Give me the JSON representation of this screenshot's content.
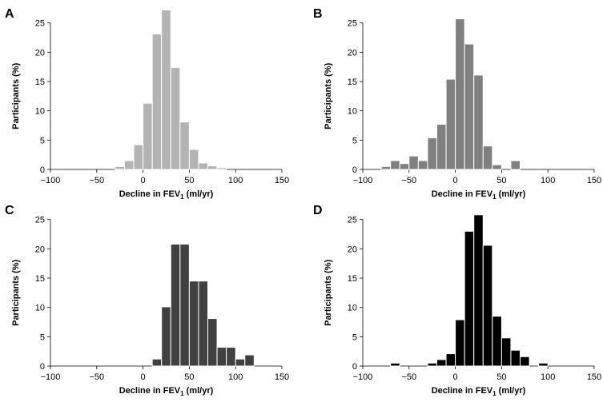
{
  "chart_data": [
    {
      "type": "bar",
      "panel_label": "A",
      "bar_color": "#b3b3b3",
      "bin_width": 10,
      "bin_starts": [
        -30,
        -20,
        -10,
        0,
        10,
        20,
        30,
        40,
        50,
        60,
        70,
        80
      ],
      "values": [
        0.5,
        1.5,
        4.2,
        11.3,
        23.1,
        27.2,
        17.4,
        8.1,
        3.4,
        1.1,
        0.6,
        0.3
      ],
      "xlim": [
        -100,
        150
      ],
      "ylim": [
        0,
        27
      ],
      "xticks": [
        -100,
        -50,
        0,
        50,
        100,
        150
      ],
      "yticks": [
        0,
        5,
        10,
        15,
        20,
        25
      ],
      "xtick_labels": [
        "−100",
        "−50",
        "0",
        "50",
        "100",
        "150"
      ],
      "ytick_labels": [
        "0",
        "5",
        "10",
        "15",
        "20",
        "25"
      ],
      "xlabel": "Decline in FEV",
      "xlabel_sub": "1",
      "xlabel_suffix": " (ml/yr)",
      "ylabel": "Participants (%)"
    },
    {
      "type": "bar",
      "panel_label": "B",
      "bar_color": "#808080",
      "bin_width": 10,
      "bin_starts": [
        -80,
        -70,
        -60,
        -50,
        -40,
        -30,
        -20,
        -10,
        0,
        10,
        20,
        30,
        40,
        50,
        60
      ],
      "values": [
        0.5,
        1.5,
        1.0,
        2.3,
        1.5,
        5.4,
        7.7,
        15.4,
        25.7,
        21.4,
        16.1,
        4.0,
        0.8,
        0,
        1.5
      ],
      "xlim": [
        -100,
        150
      ],
      "ylim": [
        0,
        27
      ],
      "xticks": [
        -100,
        -50,
        0,
        50,
        100,
        150
      ],
      "yticks": [
        0,
        5,
        10,
        15,
        20,
        25
      ],
      "xtick_labels": [
        "−100",
        "−50",
        "0",
        "50",
        "100",
        "150"
      ],
      "ytick_labels": [
        "0",
        "5",
        "10",
        "15",
        "20",
        "25"
      ],
      "xlabel": "Decline in FEV",
      "xlabel_sub": "1",
      "xlabel_suffix": " (ml/yr)",
      "ylabel": "Participants (%)"
    },
    {
      "type": "bar",
      "panel_label": "C",
      "bar_color": "#404040",
      "bin_width": 10,
      "bin_starts": [
        10,
        20,
        30,
        40,
        50,
        60,
        70,
        80,
        90,
        100,
        110
      ],
      "values": [
        1.2,
        10.1,
        20.8,
        20.8,
        14.5,
        14.5,
        8.1,
        3.2,
        3.2,
        1.2,
        1.9
      ],
      "xlim": [
        -100,
        150
      ],
      "ylim": [
        0,
        27
      ],
      "xticks": [
        -100,
        -50,
        0,
        50,
        100,
        150
      ],
      "yticks": [
        0,
        5,
        10,
        15,
        20,
        25
      ],
      "xtick_labels": [
        "−100",
        "−50",
        "0",
        "50",
        "100",
        "150"
      ],
      "ytick_labels": [
        "0",
        "5",
        "10",
        "15",
        "20",
        "25"
      ],
      "xlabel": "Decline in FEV",
      "xlabel_sub": "1",
      "xlabel_suffix": " (ml/yr)",
      "ylabel": "Participants (%)"
    },
    {
      "type": "bar",
      "panel_label": "D",
      "bar_color": "#000000",
      "bin_width": 10,
      "bin_starts": [
        -70,
        -60,
        -50,
        -40,
        -30,
        -20,
        -10,
        0,
        10,
        20,
        30,
        40,
        50,
        60,
        70,
        80,
        90
      ],
      "values": [
        0.5,
        0,
        0,
        0,
        0.5,
        1.1,
        2.1,
        7.9,
        23.0,
        25.8,
        20.6,
        8.5,
        4.8,
        2.7,
        1.6,
        0,
        0.5
      ],
      "xlim": [
        -100,
        150
      ],
      "ylim": [
        0,
        27
      ],
      "xticks": [
        -100,
        -50,
        0,
        50,
        100,
        150
      ],
      "yticks": [
        0,
        5,
        10,
        15,
        20,
        25
      ],
      "xtick_labels": [
        "−100",
        "−50",
        "0",
        "50",
        "100",
        "150"
      ],
      "ytick_labels": [
        "0",
        "5",
        "10",
        "15",
        "20",
        "25"
      ],
      "xlabel": "Decline in FEV",
      "xlabel_sub": "1",
      "xlabel_suffix": " (ml/yr)",
      "ylabel": "Participants (%)"
    }
  ]
}
